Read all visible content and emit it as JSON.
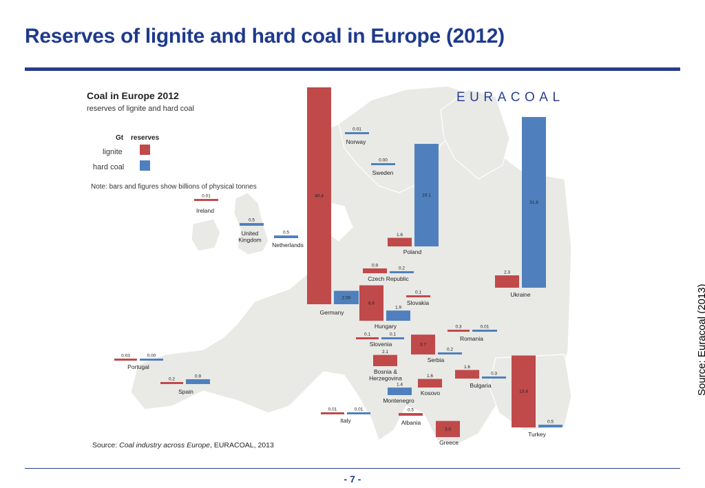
{
  "slide": {
    "title": "Reserves of lignite and hard coal in Europe (2012)",
    "side_source": "Source: Euracoal (2013)",
    "page_number": "- 7 -"
  },
  "chart_data": {
    "type": "bar",
    "title": "Coal in Europe 2012",
    "subtitle": "reserves of lignite and hard coal",
    "brand": "EURACOAL",
    "unit_label": "Gt",
    "reserves_label": "reserves",
    "note": "Note: bars and figures show billions of physical tonnes",
    "source_prefix": "Source: ",
    "source_italic": "Coal industry across Europe",
    "source_suffix": ", EURACOAL, 2013",
    "series": [
      {
        "name": "lignite",
        "color": "#c0494a"
      },
      {
        "name": "hard coal",
        "color": "#4f80bd"
      }
    ],
    "countries": [
      {
        "name": "Norway",
        "lignite": null,
        "hard_coal": 0.01,
        "hard_coal_label": "0.01"
      },
      {
        "name": "Sweden",
        "lignite": null,
        "hard_coal": 0.0,
        "hard_coal_label": "0.00"
      },
      {
        "name": "Ireland",
        "lignite": 0.01,
        "hard_coal": null,
        "lignite_label": "0.01"
      },
      {
        "name": "United Kingdom",
        "lignite": null,
        "hard_coal": 0.5,
        "hard_coal_label": "0.5"
      },
      {
        "name": "Netherlands",
        "lignite": null,
        "hard_coal": 0.5,
        "hard_coal_label": "0.5"
      },
      {
        "name": "Germany",
        "lignite": 40.4,
        "hard_coal": 2.5,
        "lignite_label": "40.4",
        "hard_coal_label": "2.50"
      },
      {
        "name": "Poland",
        "lignite": 1.6,
        "hard_coal": 19.1,
        "lignite_label": "1.6",
        "hard_coal_label": "19.1"
      },
      {
        "name": "Czech Republic",
        "lignite": 0.9,
        "hard_coal": 0.2,
        "lignite_label": "0.9",
        "hard_coal_label": "0.2"
      },
      {
        "name": "Slovakia",
        "lignite": 0.1,
        "hard_coal": null,
        "lignite_label": "0.1"
      },
      {
        "name": "Hungary",
        "lignite": 6.6,
        "hard_coal": 1.9,
        "lignite_label": "6.6",
        "hard_coal_label": "1.9"
      },
      {
        "name": "Ukraine",
        "lignite": 2.3,
        "hard_coal": 31.8,
        "lignite_label": "2.3",
        "hard_coal_label": "31.8"
      },
      {
        "name": "Romania",
        "lignite": 0.3,
        "hard_coal": 0.01,
        "lignite_label": "0.3",
        "hard_coal_label": "0.01"
      },
      {
        "name": "Slovenia",
        "lignite": 0.1,
        "hard_coal": 0.1,
        "lignite_label": "0.1",
        "hard_coal_label": "0.1"
      },
      {
        "name": "Serbia",
        "lignite": 3.7,
        "hard_coal": 0.2,
        "lignite_label": "3.7",
        "hard_coal_label": "0.2"
      },
      {
        "name": "Portugal",
        "lignite": 0.03,
        "hard_coal": 0.0,
        "lignite_label": "0.03",
        "hard_coal_label": "0.00"
      },
      {
        "name": "Bosnia & Herzegovina",
        "lignite": 2.1,
        "hard_coal": null,
        "lignite_label": "2.1"
      },
      {
        "name": "Spain",
        "lignite": 0.2,
        "hard_coal": 0.9,
        "lignite_label": "0.2",
        "hard_coal_label": "0.9"
      },
      {
        "name": "Montenegro",
        "lignite": null,
        "hard_coal": 1.4,
        "hard_coal_label": "1.4"
      },
      {
        "name": "Kosovo",
        "lignite": 1.6,
        "hard_coal": null,
        "lignite_label": "1.6"
      },
      {
        "name": "Bulgaria",
        "lignite": 1.6,
        "hard_coal": 0.3,
        "lignite_label": "1.6",
        "hard_coal_label": "0.3"
      },
      {
        "name": "Turkey",
        "lignite": 13.4,
        "hard_coal": 0.5,
        "lignite_label": "13.4",
        "hard_coal_label": "0.5"
      },
      {
        "name": "Italy",
        "lignite": 0.01,
        "hard_coal": 0.01,
        "lignite_label": "0.01",
        "hard_coal_label": "0.01"
      },
      {
        "name": "Albania",
        "lignite": 0.5,
        "hard_coal": null,
        "lignite_label": "0.5"
      },
      {
        "name": "Greece",
        "lignite": 3.0,
        "hard_coal": null,
        "lignite_label": "3.0"
      }
    ]
  }
}
